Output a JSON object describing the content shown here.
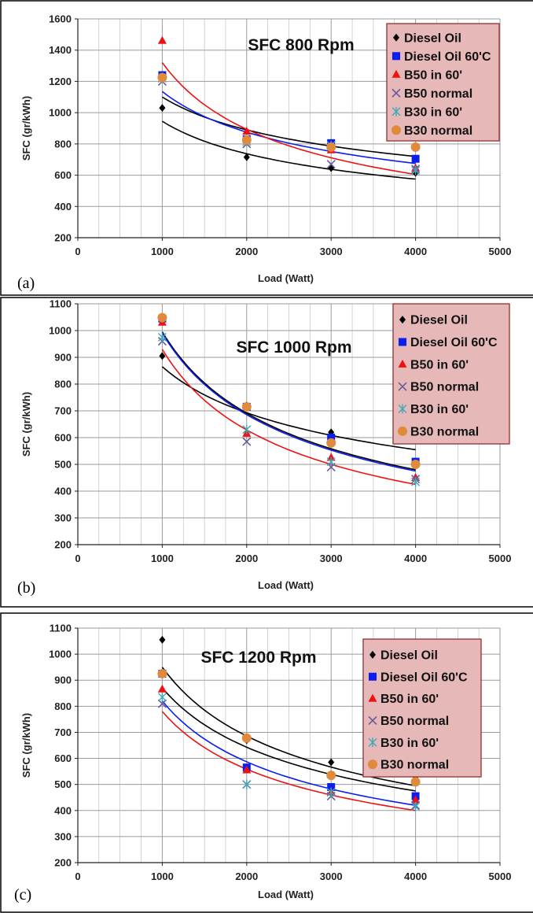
{
  "colors": {
    "diesel": "#000000",
    "diesel60": "#0a1ef0",
    "b50_60": "#ee1111",
    "b50_normal": "#6a5a9a",
    "b30_60": "#3ea8b8",
    "b30_normal": "#e08a3c",
    "legend_bg": "#e6b8b7",
    "legend_border": "#9a3a3a",
    "grid": "#b8b8b8",
    "frame": "#222222"
  },
  "chart_data": [
    {
      "type": "scatter",
      "panel": "(a)",
      "title": "SFC 800 Rpm",
      "xlabel": "Load (Watt)",
      "ylabel": "SFC (gr/kWh)",
      "xlim": [
        0,
        5000
      ],
      "ylim": [
        200,
        1600
      ],
      "xticks": [
        0,
        1000,
        2000,
        3000,
        4000,
        5000
      ],
      "yticks": [
        200,
        400,
        600,
        800,
        1000,
        1200,
        1400,
        1600
      ],
      "grid": true,
      "legend_position": "top-right",
      "x": [
        1000,
        2000,
        3000,
        4000
      ],
      "series": [
        {
          "name": "Diesel Oil",
          "marker": "diamond",
          "color_key": "diesel",
          "values": [
            1030,
            715,
            645,
            615
          ]
        },
        {
          "name": "Diesel Oil 60'C",
          "marker": "square",
          "color_key": "diesel60",
          "values": [
            1240,
            830,
            805,
            705
          ]
        },
        {
          "name": "B50 in 60'",
          "marker": "triangle",
          "color_key": "b50_60",
          "values": [
            1460,
            880,
            760,
            645
          ]
        },
        {
          "name": "B50 normal",
          "marker": "x",
          "color_key": "b50_normal",
          "values": [
            1200,
            800,
            670,
            640
          ]
        },
        {
          "name": "B30 in 60'",
          "marker": "star",
          "color_key": "b30_60",
          "values": [
            1220,
            815,
            790,
            630
          ]
        },
        {
          "name": "B30 normal",
          "marker": "circle",
          "color_key": "b30_normal",
          "values": [
            1225,
            825,
            780,
            780
          ]
        }
      ],
      "trendlines": [
        {
          "color_key": "diesel",
          "x": [
            1000,
            4000
          ],
          "y": [
            945,
            575
          ]
        },
        {
          "color_key": "diesel",
          "x": [
            1000,
            4000
          ],
          "y": [
            1100,
            720
          ]
        },
        {
          "color_key": "diesel60",
          "x": [
            1000,
            4000
          ],
          "y": [
            1135,
            675
          ]
        },
        {
          "color_key": "b50_60",
          "x": [
            1000,
            4000
          ],
          "y": [
            1320,
            605
          ]
        }
      ]
    },
    {
      "type": "scatter",
      "panel": "(b)",
      "title": "SFC 1000 Rpm",
      "xlabel": "Load (Watt)",
      "ylabel": "SFC (gr/kWh)",
      "xlim": [
        0,
        5000
      ],
      "ylim": [
        200,
        1100
      ],
      "xticks": [
        0,
        1000,
        2000,
        3000,
        4000,
        5000
      ],
      "yticks": [
        200,
        300,
        400,
        500,
        600,
        700,
        800,
        900,
        1000,
        1100
      ],
      "grid": true,
      "legend_position": "top-right",
      "x": [
        1000,
        2000,
        3000,
        4000
      ],
      "series": [
        {
          "name": "Diesel Oil",
          "marker": "diamond",
          "color_key": "diesel",
          "values": [
            905,
            720,
            620,
            590
          ]
        },
        {
          "name": "Diesel Oil 60'C",
          "marker": "square",
          "color_key": "diesel60",
          "values": [
            1045,
            715,
            600,
            510
          ]
        },
        {
          "name": "B50 in 60'",
          "marker": "triangle",
          "color_key": "b50_60",
          "values": [
            1030,
            615,
            525,
            450
          ]
        },
        {
          "name": "B50 normal",
          "marker": "x",
          "color_key": "b50_normal",
          "values": [
            960,
            585,
            490,
            445
          ]
        },
        {
          "name": "B30 in 60'",
          "marker": "star",
          "color_key": "b30_60",
          "values": [
            975,
            630,
            510,
            435
          ]
        },
        {
          "name": "B30 normal",
          "marker": "circle",
          "color_key": "b30_normal",
          "values": [
            1048,
            715,
            580,
            500
          ]
        }
      ],
      "trendlines": [
        {
          "color_key": "diesel",
          "x": [
            1000,
            4000
          ],
          "y": [
            865,
            555
          ]
        },
        {
          "color_key": "diesel",
          "x": [
            1000,
            4000
          ],
          "y": [
            995,
            480
          ]
        },
        {
          "color_key": "diesel60",
          "x": [
            1000,
            4000
          ],
          "y": [
            990,
            475
          ]
        },
        {
          "color_key": "b50_60",
          "x": [
            1000,
            4000
          ],
          "y": [
            930,
            425
          ]
        }
      ]
    },
    {
      "type": "scatter",
      "panel": "(c)",
      "title": "SFC 1200 Rpm",
      "xlabel": "Load (Watt)",
      "ylabel": "SFC (gr/kWh)",
      "xlim": [
        0,
        5000
      ],
      "ylim": [
        200,
        1100
      ],
      "xticks": [
        0,
        1000,
        2000,
        3000,
        4000,
        5000
      ],
      "yticks": [
        200,
        300,
        400,
        500,
        600,
        700,
        800,
        900,
        1000,
        1100
      ],
      "grid": true,
      "legend_position": "top-right",
      "x": [
        1000,
        2000,
        3000,
        4000
      ],
      "series": [
        {
          "name": "Diesel Oil",
          "marker": "diamond",
          "color_key": "diesel",
          "values": [
            1055,
            670,
            585,
            530
          ]
        },
        {
          "name": "Diesel Oil 60'C",
          "marker": "square",
          "color_key": "diesel60",
          "values": [
            925,
            565,
            490,
            455
          ]
        },
        {
          "name": "B50 in 60'",
          "marker": "triangle",
          "color_key": "b50_60",
          "values": [
            865,
            555,
            470,
            440
          ]
        },
        {
          "name": "B50 normal",
          "marker": "x",
          "color_key": "b50_normal",
          "values": [
            810,
            500,
            455,
            420
          ]
        },
        {
          "name": "B30 in 60'",
          "marker": "star",
          "color_key": "b30_60",
          "values": [
            835,
            500,
            470,
            415
          ]
        },
        {
          "name": "B30 normal",
          "marker": "circle",
          "color_key": "b30_normal",
          "values": [
            925,
            678,
            535,
            510
          ]
        }
      ],
      "trendlines": [
        {
          "color_key": "diesel",
          "x": [
            1000,
            4000
          ],
          "y": [
            950,
            495
          ]
        },
        {
          "color_key": "diesel",
          "x": [
            1000,
            4000
          ],
          "y": [
            870,
            475
          ]
        },
        {
          "color_key": "diesel60",
          "x": [
            1000,
            4000
          ],
          "y": [
            820,
            420
          ]
        },
        {
          "color_key": "b50_60",
          "x": [
            1000,
            4000
          ],
          "y": [
            780,
            400
          ]
        }
      ]
    }
  ]
}
